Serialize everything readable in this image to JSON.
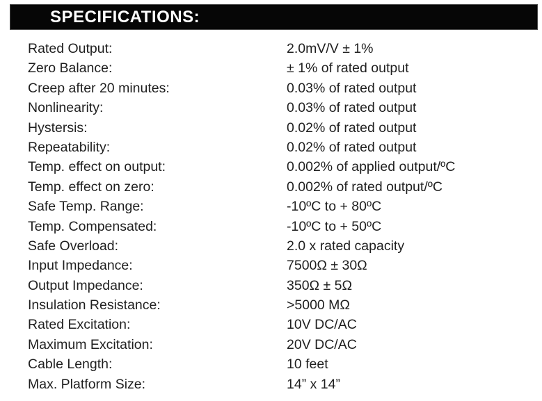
{
  "header": {
    "title": "SPECIFICATIONS:"
  },
  "colors": {
    "header_bg": "#060606",
    "header_text": "#ffffff",
    "body_text": "#1f1f1f"
  },
  "specs": {
    "rows": [
      {
        "label": "Rated Output:",
        "value": "2.0mV/V ± 1%"
      },
      {
        "label": "Zero Balance:",
        "value": "± 1% of rated output"
      },
      {
        "label": "Creep after 20 minutes:",
        "value": "0.03% of rated output"
      },
      {
        "label": "Nonlinearity:",
        "value": "0.03% of rated output"
      },
      {
        "label": "Hystersis:",
        "value": "0.02% of rated output"
      },
      {
        "label": "Repeatability:",
        "value": "0.02% of rated output"
      },
      {
        "label": "Temp. effect on output:",
        "value": "0.002% of applied output/ºC"
      },
      {
        "label": "Temp. effect on zero:",
        "value": "0.002% of rated output/ºC"
      },
      {
        "label": "Safe Temp. Range:",
        "value": "-10ºC to + 80ºC"
      },
      {
        "label": "Temp. Compensated:",
        "value": "-10ºC to + 50ºC"
      },
      {
        "label": "Safe Overload:",
        "value": "2.0 x rated capacity"
      },
      {
        "label": "Input Impedance:",
        "value": "7500Ω ± 30Ω"
      },
      {
        "label": "Output Impedance:",
        "value": "350Ω ± 5Ω"
      },
      {
        "label": "Insulation Resistance:",
        "value": ">5000 MΩ"
      },
      {
        "label": "Rated Excitation:",
        "value": "10V DC/AC"
      },
      {
        "label": "Maximum Excitation:",
        "value": "20V DC/AC"
      },
      {
        "label": "Cable Length:",
        "value": "10 feet"
      },
      {
        "label": "Max. Platform Size:",
        "value": "14” x 14”"
      }
    ]
  }
}
